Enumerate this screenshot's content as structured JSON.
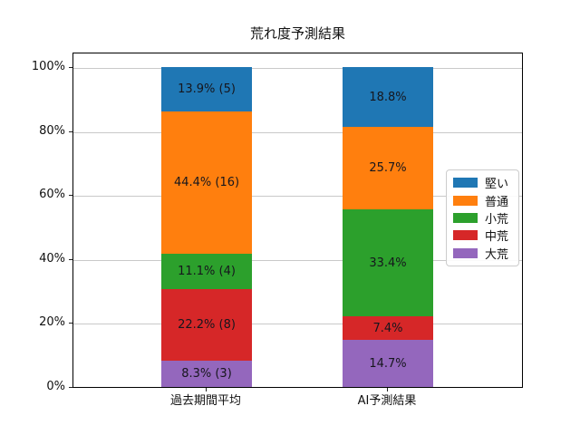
{
  "chart_data": {
    "type": "bar",
    "variant": "stacked-percentage",
    "title": "荒れ度予測結果",
    "categories": [
      "過去期間平均",
      "AI予測結果"
    ],
    "series": [
      {
        "name": "堅い",
        "color": "#1f77b4",
        "values": [
          13.9,
          18.8
        ],
        "bar_labels": [
          "13.9% (5)",
          "18.8%"
        ]
      },
      {
        "name": "普通",
        "color": "#ff7f0e",
        "values": [
          44.4,
          25.7
        ],
        "bar_labels": [
          "44.4% (16)",
          "25.7%"
        ]
      },
      {
        "name": "小荒",
        "color": "#2ca02c",
        "values": [
          11.1,
          33.4
        ],
        "bar_labels": [
          "11.1% (4)",
          "33.4%"
        ]
      },
      {
        "name": "中荒",
        "color": "#d62728",
        "values": [
          22.2,
          7.4
        ],
        "bar_labels": [
          "22.2% (8)",
          "7.4%"
        ]
      },
      {
        "name": "大荒",
        "color": "#9467bd",
        "values": [
          8.3,
          14.7
        ],
        "bar_labels": [
          "8.3% (3)",
          "14.7%"
        ]
      }
    ],
    "stack_order_bottom_to_top": [
      "大荒",
      "中荒",
      "小荒",
      "普通",
      "堅い"
    ],
    "y_ticks": [
      {
        "value": 0,
        "label": "0%"
      },
      {
        "value": 20,
        "label": "20%"
      },
      {
        "value": 40,
        "label": "40%"
      },
      {
        "value": 60,
        "label": "60%"
      },
      {
        "value": 80,
        "label": "80%"
      },
      {
        "value": 100,
        "label": "100%"
      }
    ],
    "ylim": [
      0,
      104.8
    ],
    "grid": true,
    "legend_position": "center-right",
    "spine_color": "#000000",
    "grid_color": "#c9c9c9"
  }
}
